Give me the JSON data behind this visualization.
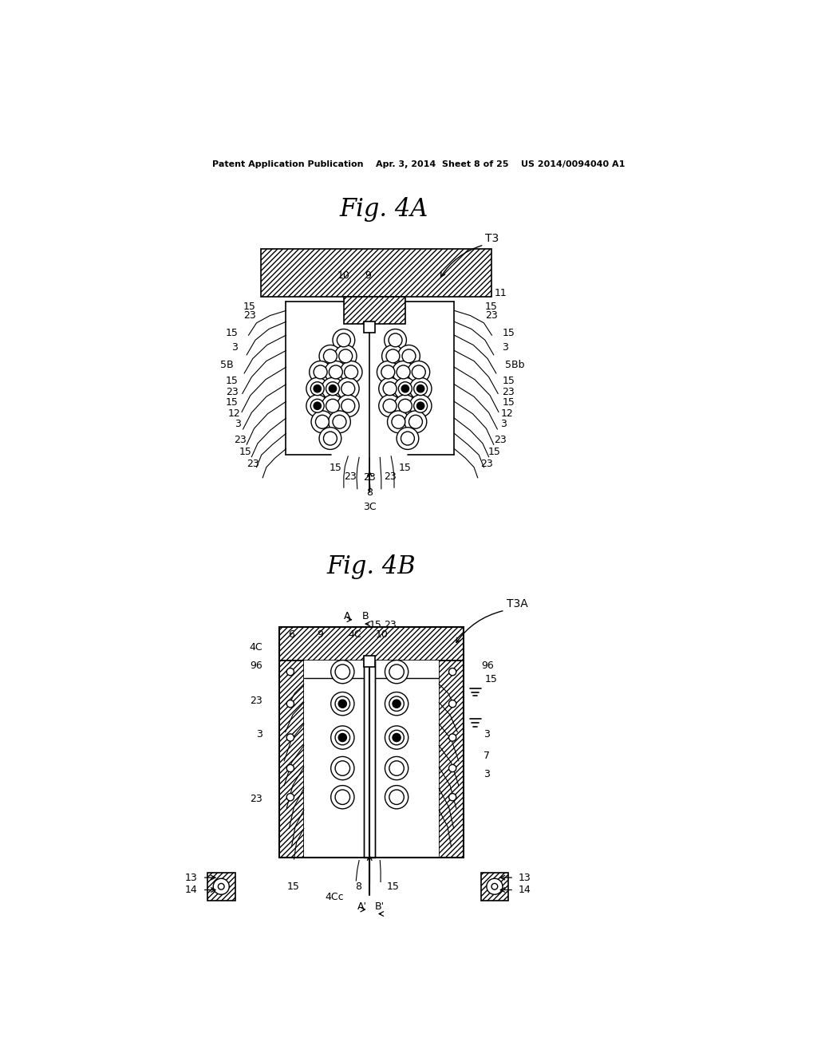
{
  "bg_color": "#ffffff",
  "line_color": "#000000",
  "header_text": "Patent Application Publication    Apr. 3, 2014  Sheet 8 of 25    US 2014/0094040 A1",
  "fig4A_title": "Fig. 4A",
  "fig4B_title": "Fig. 4B",
  "fig4A_label": "T3",
  "fig4B_label": "T3A"
}
